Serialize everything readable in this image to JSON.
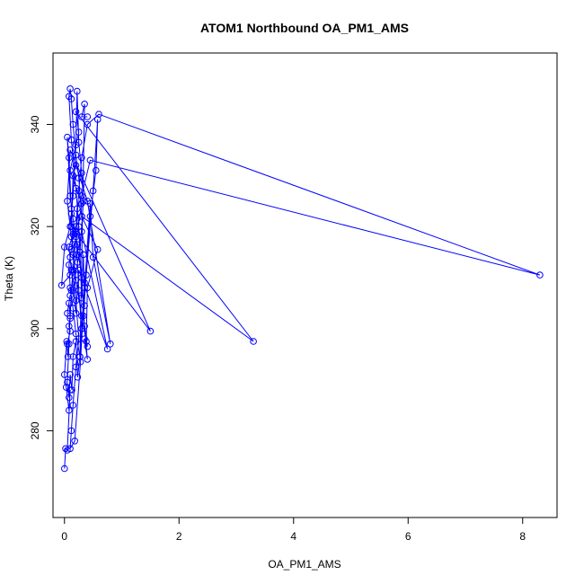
{
  "chart_data": {
    "type": "line",
    "title": "ATOM1 Northbound OA_PM1_AMS",
    "xlabel": "OA_PM1_AMS",
    "ylabel": "Theta (K)",
    "xlim": [
      -0.2,
      8.6
    ],
    "ylim": [
      263,
      354
    ],
    "xticks": [
      0,
      2,
      4,
      6,
      8
    ],
    "yticks": [
      280,
      300,
      320,
      340
    ],
    "grid": false,
    "legend": "none",
    "series": [
      {
        "color": "#0000ff",
        "markers": "open-circle",
        "points": [
          [
            0.0,
            272.6
          ],
          [
            0.02,
            276.5
          ],
          [
            0.05,
            276.2
          ],
          [
            0.1,
            288.0
          ],
          [
            0.08,
            284.0
          ],
          [
            0.03,
            288.5
          ],
          [
            0.0,
            291.0
          ],
          [
            0.04,
            297.5
          ],
          [
            0.06,
            294.5
          ],
          [
            0.1,
            302.0
          ],
          [
            0.12,
            307.5
          ],
          [
            0.15,
            311.5
          ],
          [
            0.2,
            318.0
          ],
          [
            0.25,
            327.0
          ],
          [
            0.3,
            333.5
          ],
          [
            0.4,
            340.0
          ],
          [
            0.6,
            342.0
          ],
          [
            8.3,
            310.5
          ],
          [
            0.45,
            333.0
          ],
          [
            0.3,
            326.0
          ],
          [
            0.22,
            323.5
          ],
          [
            0.2,
            319.0
          ],
          [
            0.25,
            307.5
          ],
          [
            0.3,
            300.0
          ],
          [
            0.35,
            304.5
          ],
          [
            0.33,
            314.5
          ],
          [
            0.3,
            306.0
          ],
          [
            0.25,
            320.0
          ],
          [
            0.2,
            327.5
          ],
          [
            0.12,
            337.0
          ],
          [
            0.08,
            345.5
          ],
          [
            0.1,
            347.0
          ],
          [
            0.12,
            345.0
          ],
          [
            0.15,
            340.0
          ],
          [
            0.2,
            334.0
          ],
          [
            0.25,
            329.5
          ],
          [
            0.3,
            322.0
          ],
          [
            3.3,
            297.5
          ],
          [
            0.2,
            342.5
          ],
          [
            0.25,
            338.5
          ],
          [
            0.1,
            331.0
          ],
          [
            0.3,
            324.5
          ],
          [
            0.22,
            318.5
          ],
          [
            0.18,
            316.5
          ],
          [
            0.12,
            315.5
          ],
          [
            0.1,
            314.0
          ],
          [
            0.08,
            312.5
          ],
          [
            0.1,
            308.0
          ],
          [
            0.15,
            304.0
          ],
          [
            0.2,
            299.0
          ],
          [
            0.27,
            294.5
          ],
          [
            0.3,
            300.0
          ],
          [
            0.35,
            309.0
          ],
          [
            0.45,
            322.0
          ],
          [
            0.55,
            331.0
          ],
          [
            0.58,
            341.0
          ],
          [
            0.5,
            327.0
          ],
          [
            0.38,
            310.5
          ],
          [
            0.33,
            302.5
          ],
          [
            0.4,
            296.5
          ],
          [
            0.35,
            298.0
          ],
          [
            0.4,
            294.0
          ],
          [
            0.35,
            300.5
          ],
          [
            0.3,
            310.0
          ],
          [
            0.22,
            316.5
          ],
          [
            0.15,
            321.5
          ],
          [
            0.1,
            326.0
          ],
          [
            0.05,
            337.5
          ],
          [
            0.08,
            333.5
          ],
          [
            0.12,
            323.5
          ],
          [
            0.15,
            314.5
          ],
          [
            0.2,
            305.5
          ],
          [
            0.25,
            298.0
          ],
          [
            0.2,
            292.5
          ],
          [
            0.15,
            285.0
          ],
          [
            0.12,
            280.0
          ],
          [
            0.1,
            276.5
          ],
          [
            0.18,
            278.0
          ],
          [
            0.28,
            293.5
          ],
          [
            0.35,
            308.0
          ],
          [
            0.45,
            324.5
          ],
          [
            0.5,
            314.0
          ],
          [
            0.8,
            297.0
          ],
          [
            0.4,
            325.0
          ],
          [
            0.2,
            332.0
          ],
          [
            0.15,
            330.0
          ],
          [
            0.12,
            320.0
          ],
          [
            1.5,
            299.5
          ],
          [
            0.1,
            335.0
          ],
          [
            0.05,
            325.0
          ],
          [
            0.12,
            318.0
          ],
          [
            0.2,
            309.5
          ],
          [
            0.3,
            302.5
          ],
          [
            0.38,
            297.5
          ],
          [
            0.4,
            308.0
          ],
          [
            0.58,
            315.5
          ],
          [
            0.3,
            322.0
          ],
          [
            0.2,
            320.0
          ],
          [
            0.15,
            318.5
          ],
          [
            0.08,
            316.0
          ],
          [
            0.12,
            311.5
          ],
          [
            0.2,
            303.0
          ],
          [
            0.25,
            311.5
          ],
          [
            0.75,
            296.0
          ],
          [
            0.3,
            319.0
          ],
          [
            0.22,
            314.5
          ],
          [
            0.1,
            310.5
          ],
          [
            -0.05,
            308.5
          ],
          [
            0.0,
            316.0
          ],
          [
            0.1,
            320.0
          ],
          [
            0.12,
            322.5
          ],
          [
            0.15,
            326.0
          ],
          [
            0.2,
            336.0
          ],
          [
            0.22,
            346.5
          ],
          [
            0.25,
            336.5
          ],
          [
            0.3,
            330.5
          ],
          [
            0.33,
            325.0
          ],
          [
            0.27,
            315.0
          ],
          [
            0.23,
            313.0
          ],
          [
            0.15,
            307.5
          ],
          [
            0.1,
            306.5
          ],
          [
            0.05,
            303.0
          ],
          [
            0.08,
            305.0
          ],
          [
            0.1,
            302.5
          ],
          [
            0.08,
            300.5
          ],
          [
            0.1,
            299.5
          ],
          [
            0.05,
            297.0
          ],
          [
            0.08,
            297.0
          ],
          [
            0.05,
            289.5
          ],
          [
            0.08,
            286.5
          ],
          [
            0.1,
            291.0
          ],
          [
            0.13,
            288.0
          ],
          [
            0.15,
            294.5
          ],
          [
            0.2,
            297.5
          ],
          [
            0.23,
            290.5
          ],
          [
            0.27,
            294.5
          ],
          [
            0.35,
            344.0
          ],
          [
            0.3,
            341.5
          ],
          [
            0.4,
            341.5
          ]
        ]
      }
    ]
  }
}
